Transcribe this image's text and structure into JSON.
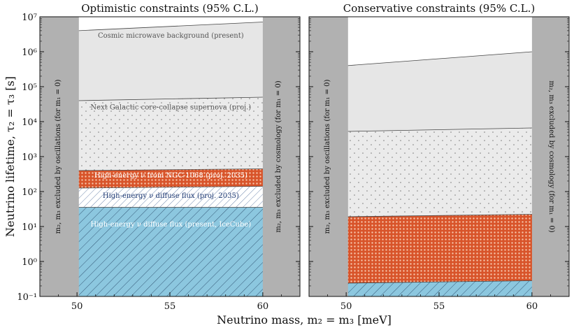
{
  "chart_data": {
    "type": "area",
    "xlabel": "Neutrino mass, m₂ = m₃ [meV]",
    "ylabel": "Neutrino lifetime, τ₂ = τ₃ [s]",
    "xlim": [
      48,
      62
    ],
    "ylim_log10": [
      -1,
      7
    ],
    "xticks": [
      50,
      55,
      60
    ],
    "yticks_log10": [
      -1,
      0,
      1,
      2,
      3,
      4,
      5,
      6,
      7
    ],
    "yticks_labels": [
      "10⁻¹",
      "10⁰",
      "10¹",
      "10²",
      "10³",
      "10⁴",
      "10⁵",
      "10⁶",
      "10⁷"
    ],
    "xticks_labels": [
      "50",
      "55",
      "60"
    ],
    "gray_regions": [
      {
        "name": "oscillations",
        "x_range": [
          48,
          50.1
        ],
        "label": "m₂, m₃ excluded by oscillations (for m₁ = 0)"
      },
      {
        "name": "cosmology",
        "x_range": [
          60,
          62
        ],
        "label": "m₂, m₃ excluded by cosmology (for m₁ = 0)"
      }
    ],
    "panels": [
      {
        "title": "Optimistic constraints (95% C.L.)",
        "bands": [
          {
            "name": "IceCube present",
            "label": "High-energy ν diffuse flux (present, IceCube)",
            "x": [
              50,
              60
            ],
            "upper_log10": [
              1.55,
              1.55
            ],
            "color": "#8cc7df",
            "pattern": "hatch",
            "text_color": "#ffffff",
            "label_log10": 1.0
          },
          {
            "name": "diffuse 2035",
            "label": "High-energy ν diffuse flux (proj. 2035)",
            "x": [
              50,
              60
            ],
            "upper_log10": [
              2.1,
              2.15
            ],
            "color": "#ffffff",
            "pattern": "hatch-dense",
            "text_color": "#1f3a73",
            "label_log10": 1.82
          },
          {
            "name": "NGC-1068",
            "label": "High-energy ν from NGC-1068 (proj. 2035)",
            "x": [
              50,
              60
            ],
            "upper_log10": [
              2.6,
              2.65
            ],
            "color": "#d8542a",
            "pattern": "dots",
            "text_color": "#ffffff",
            "label_log10": 2.4
          },
          {
            "name": "supernova",
            "label": "Next Galactic core-collapse supernova (proj.)",
            "x": [
              50,
              60
            ],
            "upper_log10": [
              4.6,
              4.7
            ],
            "color": "#ebebeb",
            "pattern": "dots-gray",
            "text_color": "#555555",
            "label_log10": 4.35
          },
          {
            "name": "CMB",
            "label": "Cosmic microwave background (present)",
            "x": [
              50,
              60
            ],
            "upper_log10": [
              6.6,
              6.85
            ],
            "color": "#e6e6e6",
            "pattern": "none",
            "text_color": "#555555",
            "label_log10": 6.4
          }
        ]
      },
      {
        "title": "Conservative constraints (95% C.L.)",
        "bands": [
          {
            "name": "IceCube present",
            "label": "",
            "x": [
              50,
              60
            ],
            "upper_log10": [
              -0.62,
              -0.55
            ],
            "color": "#8cc7df",
            "pattern": "hatch",
            "text_color": "#ffffff",
            "label_log10": 0
          },
          {
            "name": "NGC-1068",
            "label": "",
            "x": [
              50,
              60
            ],
            "upper_log10": [
              1.28,
              1.35
            ],
            "color": "#d8542a",
            "pattern": "dots",
            "text_color": "#ffffff",
            "label_log10": 0
          },
          {
            "name": "supernova",
            "label": "",
            "x": [
              50,
              60
            ],
            "upper_log10": [
              3.72,
              3.82
            ],
            "color": "#ebebeb",
            "pattern": "dots-gray",
            "text_color": "#555555",
            "label_log10": 0
          },
          {
            "name": "CMB",
            "label": "",
            "x": [
              50,
              60
            ],
            "upper_log10": [
              5.6,
              6.0
            ],
            "color": "#e6e6e6",
            "pattern": "none",
            "text_color": "#555555",
            "label_log10": 0
          }
        ]
      }
    ]
  }
}
